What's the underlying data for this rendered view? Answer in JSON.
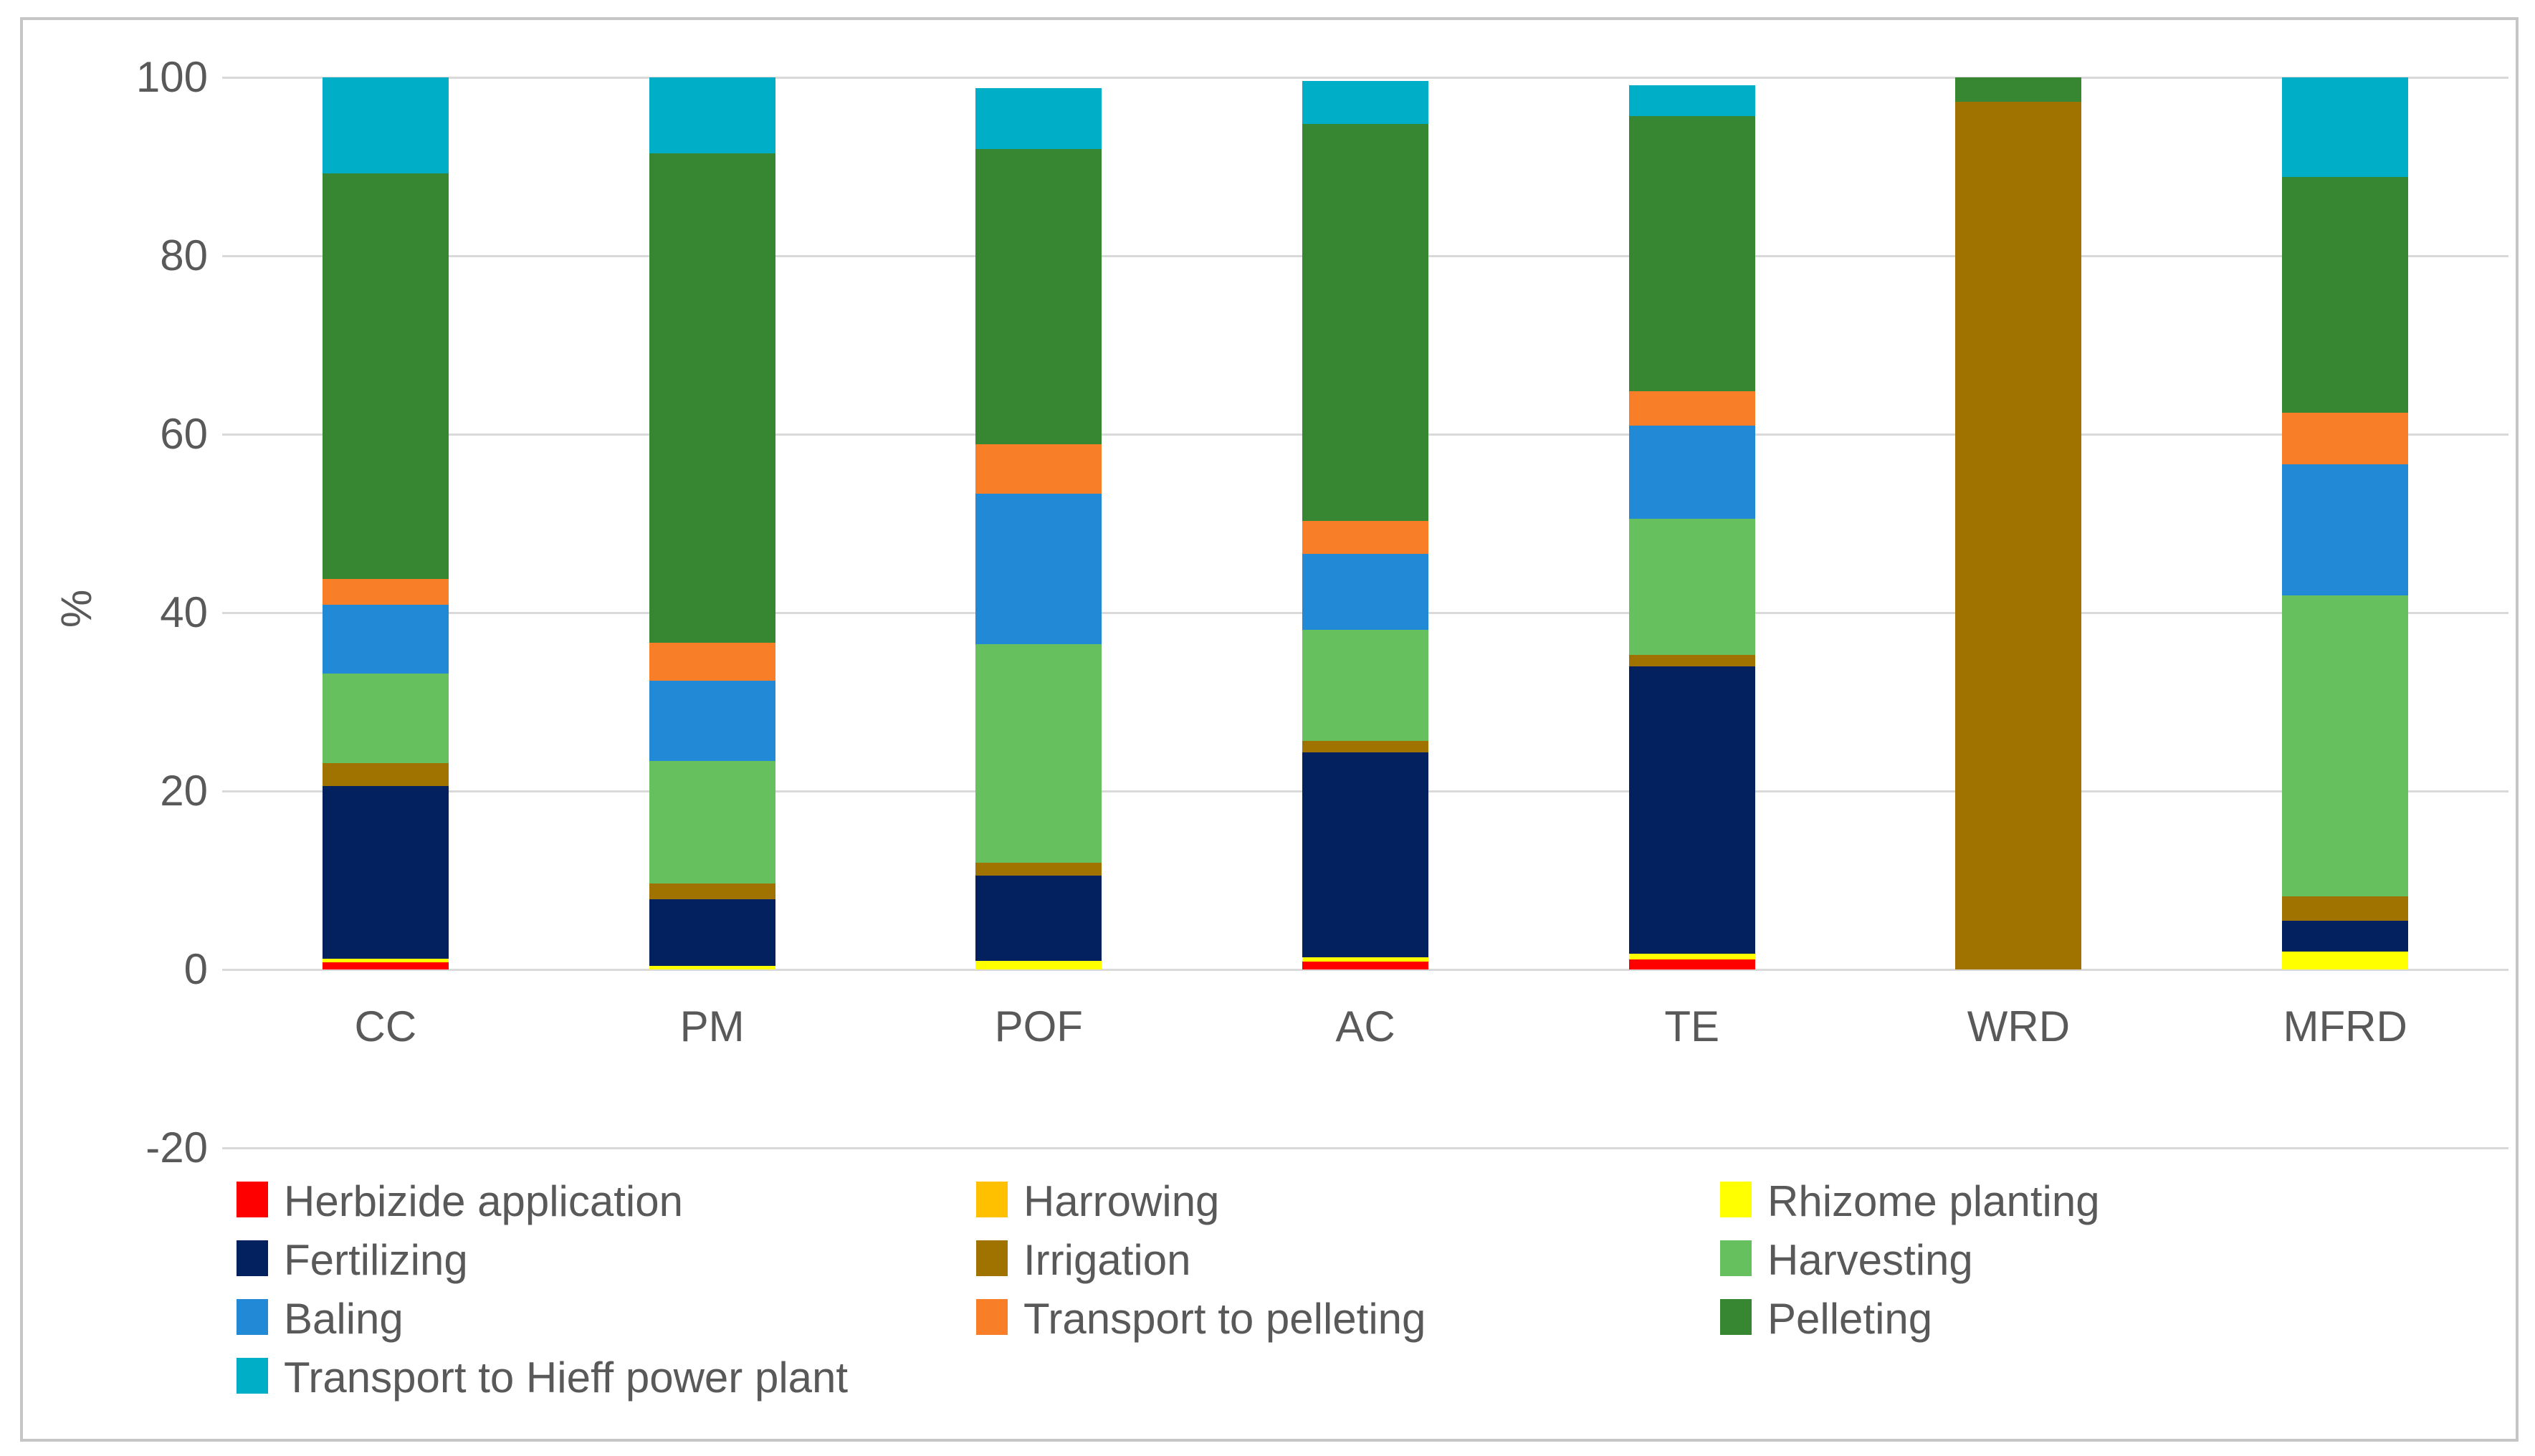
{
  "chart_data": {
    "type": "bar",
    "stacked": true,
    "title": "",
    "ylabel": "%",
    "xlabel": "",
    "categories": [
      "CC",
      "PM",
      "POF",
      "AC",
      "TE",
      "WRD",
      "MFRD"
    ],
    "yticks": [
      100,
      80,
      60,
      40,
      20,
      0,
      -20
    ],
    "ylim": [
      -20,
      100
    ],
    "grid": true,
    "legend_position": "bottom",
    "series": [
      {
        "name": "Herbizide application",
        "color": "#FF0000",
        "values": [
          0.8,
          0,
          0,
          0.9,
          1.1,
          0,
          0
        ]
      },
      {
        "name": "Harrowing",
        "color": "#FFC000",
        "values": [
          0,
          0,
          0,
          0,
          0,
          0,
          0
        ]
      },
      {
        "name": "Rhizome planting",
        "color": "#FFFF00",
        "values": [
          0.4,
          0.4,
          1.0,
          0.5,
          0.7,
          0,
          2.0
        ]
      },
      {
        "name": "Fertilizing",
        "color": "#03205F",
        "values": [
          19.4,
          7.5,
          9.5,
          22.9,
          32.2,
          0,
          3.5
        ]
      },
      {
        "name": "Irrigation",
        "color": "#A07300",
        "values": [
          2.5,
          1.7,
          1.5,
          1.3,
          1.3,
          97.3,
          2.7
        ]
      },
      {
        "name": "Harvesting",
        "color": "#66C05E",
        "values": [
          10.1,
          13.8,
          24.5,
          12.5,
          15.2,
          0,
          33.7
        ]
      },
      {
        "name": "Baling",
        "color": "#2189D5",
        "values": [
          7.7,
          9.0,
          16.8,
          8.5,
          10.5,
          0,
          14.7
        ]
      },
      {
        "name": "Transport to pelleting",
        "color": "#F97E28",
        "values": [
          2.9,
          4.2,
          5.6,
          3.7,
          3.8,
          0,
          5.8
        ]
      },
      {
        "name": "Pelleting",
        "color": "#378631",
        "values": [
          45.4,
          54.9,
          33.1,
          44.5,
          30.9,
          2.7,
          26.4
        ]
      },
      {
        "name": "Transport to Hieff power plant",
        "color": "#00AEC8",
        "values": [
          10.8,
          8.5,
          6.8,
          4.8,
          3.4,
          0,
          11.2
        ]
      }
    ]
  },
  "colors": {
    "gridline": "#D9D9D9",
    "axis_text": "#595959",
    "figure_border": "#C6C6C6",
    "background": "#FFFFFF"
  }
}
